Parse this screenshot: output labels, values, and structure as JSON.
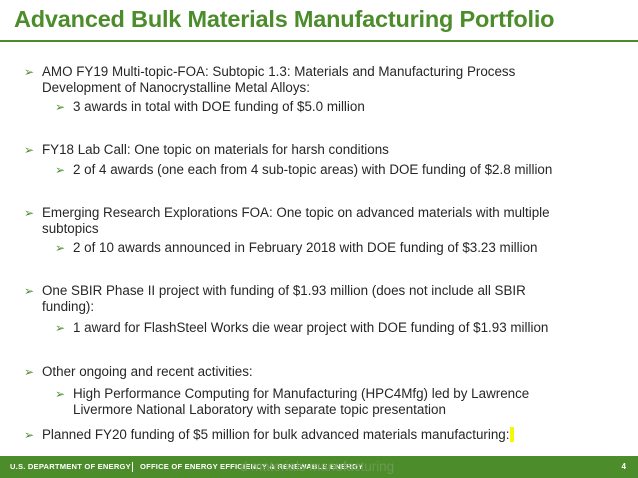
{
  "slide": {
    "title": "Advanced Bulk Materials Manufacturing Portfolio",
    "page_number": "4"
  },
  "bullets": [
    {
      "id": "amo",
      "lines": [
        "AMO FY19 Multi-topic-FOA:  Subtopic 1.3: Materials and Manufacturing Process",
        "Development of Nanocrystalline Metal Alloys:"
      ],
      "sub": [
        "3 awards in total with DOE funding of $5.0 million"
      ]
    },
    {
      "id": "fy18",
      "lines": [
        "FY18 Lab Call: One topic on materials for harsh conditions"
      ],
      "sub": [
        "2 of 4 awards (one each from 4 sub-topic areas) with DOE funding of $2.8 million"
      ]
    },
    {
      "id": "ere",
      "lines": [
        "Emerging Research Explorations FOA: One topic on advanced materials with multiple",
        "subtopics"
      ],
      "sub": [
        "2 of 10 awards announced in February 2018 with DOE funding of $3.23 million"
      ]
    },
    {
      "id": "sbir",
      "lines": [
        "One SBIR Phase II project with funding of $1.93 million (does not include all SBIR",
        "funding):"
      ],
      "sub": [
        "1 award for FlashSteel Works die wear project with DOE funding of $1.93 million"
      ]
    },
    {
      "id": "other",
      "lines": [
        "Other ongoing and recent activities:"
      ],
      "sub": [
        "High Performance Computing for Manufacturing (HPC4Mfg) led by Lawrence",
        "Livermore National Laboratory with separate topic presentation"
      ]
    },
    {
      "id": "planned",
      "lines": [
        "Planned FY20 funding of $5 million for bulk advanced materials manufacturing:"
      ],
      "sub": []
    }
  ],
  "overflow_text": "d materials manufacturing",
  "footer": {
    "left": "U.S. DEPARTMENT OF ENERGY",
    "middle": "OFFICE OF ENERGY EFFICIENCY & RENEWABLE ENERGY"
  },
  "colors": {
    "brand_green": "#4c8c2b",
    "highlight_yellow": "#f7f700",
    "body_text": "#262626"
  },
  "icons": {
    "bullet": "arrowhead-bullet-icon"
  }
}
